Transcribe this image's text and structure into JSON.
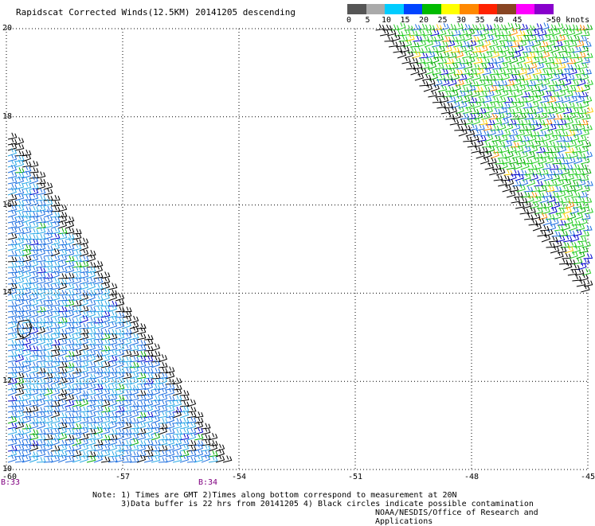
{
  "title": "Rapidscat Corrected Winds(12.5KM) 20141205 descending",
  "legend": {
    "units": ">50 knots",
    "bins": [
      {
        "label": "0",
        "color": "#555555"
      },
      {
        "label": "5",
        "color": "#aaaaaa"
      },
      {
        "label": "10",
        "color": "#00ccff"
      },
      {
        "label": "15",
        "color": "#0044ff"
      },
      {
        "label": "20",
        "color": "#00bb00"
      },
      {
        "label": "25",
        "color": "#ffff00"
      },
      {
        "label": "30",
        "color": "#ff8800"
      },
      {
        "label": "35",
        "color": "#ff2200"
      },
      {
        "label": "40",
        "color": "#884422"
      },
      {
        "label": "45",
        "color": "#ff00ff"
      },
      {
        "label": "",
        "color": "#8800cc"
      }
    ]
  },
  "axes": {
    "lat_labels": [
      "20",
      "18",
      "16",
      "14",
      "12",
      "10"
    ],
    "lon_labels": [
      "-60",
      "-57",
      "-54",
      "-51",
      "-48",
      "-45"
    ],
    "lat_range": [
      10,
      20
    ],
    "lon_range": [
      -60,
      -45
    ]
  },
  "time_labels": [
    "B:33",
    "B:34"
  ],
  "notes": [
    "Note: 1) Times are GMT 2)Times along bottom correspond to measurement at 20N",
    "3)Data buffer is 22 hrs from 20141205 4) Black circles indicate possible contamination"
  ],
  "credit": "NOAA/NESDIS/Office of Research and Applications"
}
